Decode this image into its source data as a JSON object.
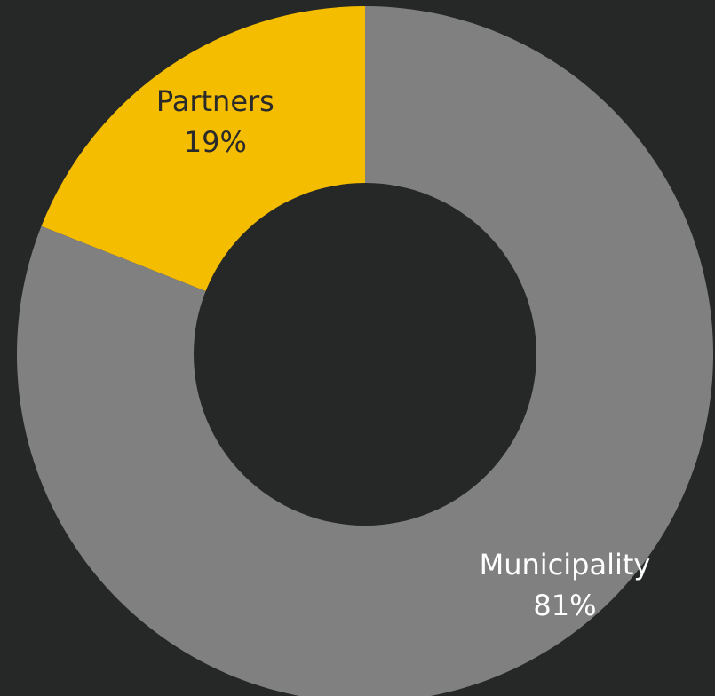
{
  "chart_data": {
    "type": "pie",
    "donut": true,
    "title": "",
    "legend": "none",
    "series": [
      {
        "name": "",
        "slices": [
          {
            "label": "Partners",
            "value": 19,
            "display": "19%",
            "color": "#F5BD00",
            "label_color": "#2A2A2A"
          },
          {
            "label": "Municipality",
            "value": 81,
            "display": "81%",
            "color": "#808080",
            "label_color": "#FFFFFF"
          }
        ]
      }
    ],
    "background_color": "#262828"
  }
}
